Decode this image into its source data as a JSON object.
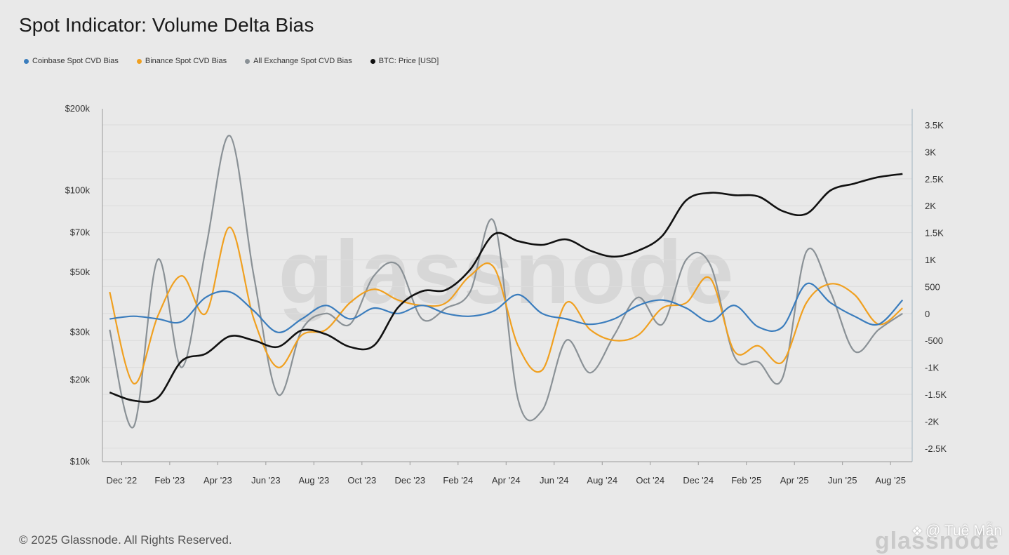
{
  "title": "Spot Indicator: Volume Delta Bias",
  "legend": [
    {
      "label": "Coinbase Spot CVD Bias",
      "color": "#3b7dbd"
    },
    {
      "label": "Binance Spot CVD Bias",
      "color": "#f0a020"
    },
    {
      "label": "All Exchange Spot CVD Bias",
      "color": "#8a9196"
    },
    {
      "label": "BTC: Price [USD]",
      "color": "#111111"
    }
  ],
  "footer": {
    "copyright": "© 2025 Glassnode. All Rights Reserved.",
    "brand": "glassnode",
    "author": "@ Tuệ Mẫn",
    "author_icon": "binance-diamond-icon"
  },
  "chart_data": {
    "type": "line",
    "title": "Spot Indicator: Volume Delta Bias",
    "watermark": "glassnode",
    "x_ticks": [
      "Dec '22",
      "Feb '23",
      "Apr '23",
      "Jun '23",
      "Aug '23",
      "Oct '23",
      "Dec '23",
      "Feb '24",
      "Apr '24",
      "Jun '24",
      "Aug '24",
      "Oct '24",
      "Dec '24",
      "Feb '25",
      "Apr '25",
      "Jun '25",
      "Aug '25"
    ],
    "x_range": [
      "2022-11",
      "2025-08"
    ],
    "left_axis": {
      "scale": "log",
      "unit": "USD",
      "ylim": [
        10000,
        200000
      ],
      "ticks": [
        10000,
        20000,
        30000,
        50000,
        70000,
        100000,
        200000
      ],
      "tick_labels": [
        "$10k",
        "$20k",
        "$30k",
        "$50k",
        "$70k",
        "$100k",
        "$200k"
      ]
    },
    "right_axis": {
      "scale": "linear",
      "ylim": [
        -2750,
        3800
      ],
      "ticks": [
        -2500,
        -2000,
        -1500,
        -1000,
        -500,
        0,
        500,
        1000,
        1500,
        2000,
        2500,
        3000,
        3500
      ],
      "tick_labels": [
        "-2.5K",
        "-2K",
        "-1.5K",
        "-1K",
        "-500",
        "0",
        "500",
        "1K",
        "1.5K",
        "2K",
        "2.5K",
        "3K",
        "3.5K"
      ]
    },
    "x": [
      "2022-11",
      "2022-12",
      "2023-01",
      "2023-02",
      "2023-03",
      "2023-04",
      "2023-05",
      "2023-06",
      "2023-07",
      "2023-08",
      "2023-09",
      "2023-10",
      "2023-11",
      "2023-12",
      "2024-01",
      "2024-02",
      "2024-03",
      "2024-04",
      "2024-05",
      "2024-06",
      "2024-07",
      "2024-08",
      "2024-09",
      "2024-10",
      "2024-11",
      "2024-12",
      "2025-01",
      "2025-02",
      "2025-03",
      "2025-04",
      "2025-05",
      "2025-06",
      "2025-07",
      "2025-08"
    ],
    "series": [
      {
        "name": "BTC: Price [USD]",
        "axis": "left",
        "color": "#111111",
        "values": [
          18000,
          16800,
          17200,
          23500,
          25000,
          29000,
          28000,
          26500,
          30500,
          29500,
          26500,
          26800,
          37000,
          42500,
          43000,
          51000,
          69000,
          65000,
          63000,
          66000,
          60000,
          57000,
          60000,
          68000,
          92000,
          98000,
          96000,
          95000,
          84000,
          82000,
          100000,
          106000,
          112000,
          115000
        ]
      },
      {
        "name": "Coinbase Spot CVD Bias",
        "axis": "right",
        "color": "#3b7dbd",
        "values": [
          -100,
          -50,
          -100,
          -150,
          300,
          400,
          50,
          -350,
          -100,
          150,
          -100,
          100,
          0,
          150,
          0,
          -50,
          50,
          350,
          0,
          -100,
          -200,
          -100,
          150,
          250,
          100,
          -150,
          150,
          -250,
          -250,
          550,
          200,
          -50,
          -200,
          250
        ]
      },
      {
        "name": "Binance Spot CVD Bias",
        "axis": "right",
        "color": "#f0a020",
        "values": [
          400,
          -1300,
          -50,
          700,
          0,
          1600,
          -100,
          -1000,
          -400,
          -300,
          200,
          450,
          250,
          150,
          200,
          700,
          850,
          -600,
          -1050,
          200,
          -300,
          -500,
          -400,
          100,
          200,
          650,
          -700,
          -600,
          -900,
          200,
          550,
          350,
          -200,
          100
        ]
      },
      {
        "name": "All Exchange Spot CVD Bias",
        "axis": "right",
        "color": "#8a9196",
        "values": [
          -300,
          -2100,
          1000,
          -1000,
          1200,
          3300,
          700,
          -1500,
          -300,
          0,
          -200,
          700,
          900,
          -100,
          100,
          400,
          1700,
          -1600,
          -1800,
          -500,
          -1100,
          -400,
          300,
          -200,
          1000,
          900,
          -800,
          -900,
          -1200,
          1150,
          400,
          -700,
          -300,
          0
        ]
      }
    ]
  }
}
